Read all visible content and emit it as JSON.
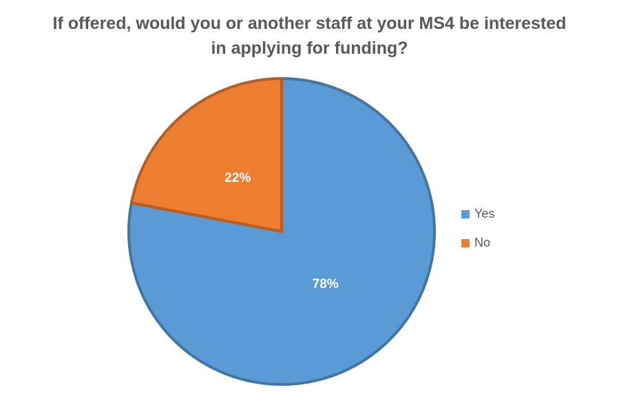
{
  "chart_data": {
    "type": "pie",
    "title": "If offered, would you or another staff at your MS4 be interested in applying for funding?",
    "categories": [
      "Yes",
      "No"
    ],
    "values": [
      78,
      22
    ],
    "value_labels": [
      "78%",
      "22%"
    ],
    "colors": [
      "#5b9bd5",
      "#ed7d31"
    ],
    "legend": "right"
  }
}
